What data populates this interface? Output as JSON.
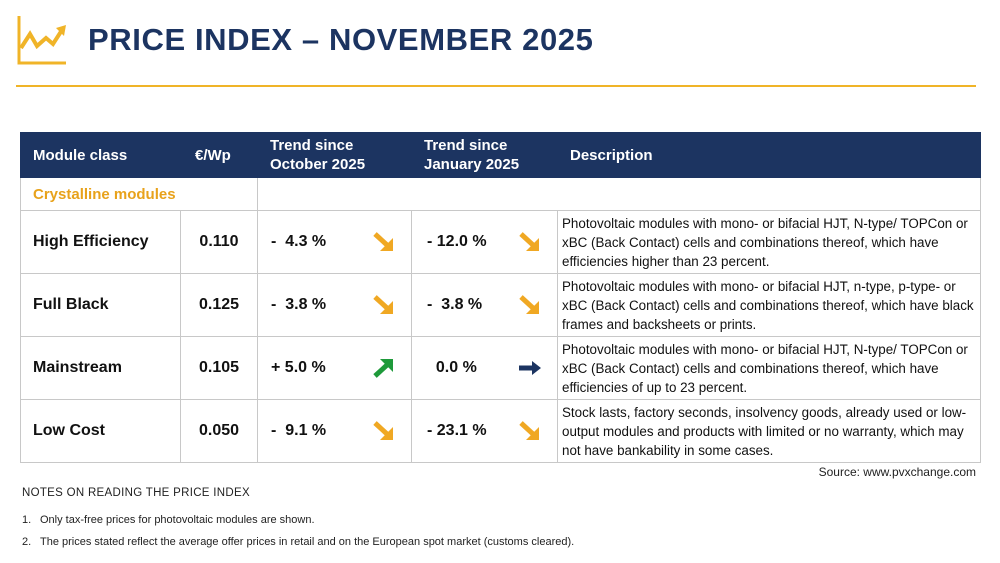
{
  "header": {
    "title": "PRICE INDEX – NOVEMBER 2025",
    "logo_icon": "chart-trend-icon",
    "accent_color": "#f0b428",
    "brand_color": "#1c3461"
  },
  "table": {
    "headers": {
      "module_class": "Module class",
      "price": "€/Wp",
      "trend_oct_line1": "Trend since",
      "trend_oct_line2": "October 2025",
      "trend_jan_line1": "Trend since",
      "trend_jan_line2": "January 2025",
      "description": "Description"
    },
    "section": "Crystalline modules",
    "rows": [
      {
        "name": "High Efficiency",
        "price": "0.110",
        "trend_oct": "-  4.3 %",
        "trend_oct_dir": "down",
        "trend_jan": "- 12.0 %",
        "trend_jan_dir": "down",
        "desc": "Photovoltaic modules with mono- or bifacial HJT, N-type/ TOPCon or xBC (Back Contact) cells and combinations thereof, which have efficiencies higher than 23 percent."
      },
      {
        "name": "Full Black",
        "price": "0.125",
        "trend_oct": "-  3.8 %",
        "trend_oct_dir": "down",
        "trend_jan": "-  3.8 %",
        "trend_jan_dir": "down",
        "desc": "Photovoltaic modules with mono- or bifacial HJT, n-type, p-type- or xBC (Back Contact) cells and combinations thereof, which have black frames and backsheets or prints."
      },
      {
        "name": "Mainstream",
        "price": "0.105",
        "trend_oct": "+ 5.0 %",
        "trend_oct_dir": "up",
        "trend_jan": "  0.0 %",
        "trend_jan_dir": "flat",
        "desc": "Photovoltaic modules with mono- or bifacial HJT, N-type/ TOPCon or xBC (Back Contact) cells and combinations thereof, which have efficiencies of up to 23 percent."
      },
      {
        "name": "Low Cost",
        "price": "0.050",
        "trend_oct": "-  9.1 %",
        "trend_oct_dir": "down",
        "trend_jan": "- 23.1 %",
        "trend_jan_dir": "down",
        "desc": "Stock lasts, factory seconds, insolvency goods, already used or low-output modules and products with limited or no warranty, which may not have bankability in some cases."
      }
    ],
    "arrow_colors": {
      "down": "#f0a823",
      "up": "#1e9a3a",
      "flat": "#1c3461"
    }
  },
  "source": "Source: www.pvxchange.com",
  "notes": {
    "heading": "NOTES ON READING THE PRICE INDEX",
    "items": [
      {
        "num": "1.",
        "text": "Only tax-free prices for photovoltaic modules are shown."
      },
      {
        "num": "2.",
        "text": "The prices stated reflect the average offer prices in retail and on the European spot market (customs cleared)."
      }
    ]
  }
}
